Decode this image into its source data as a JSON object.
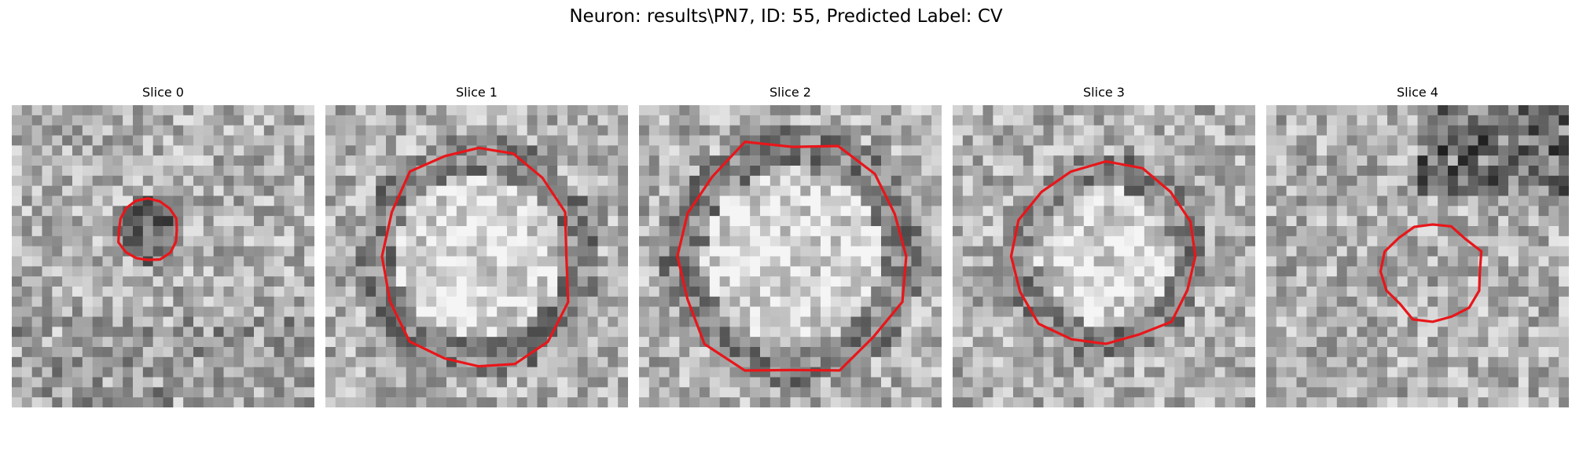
{
  "figure": {
    "title": "Neuron: results\\PN7, ID: 55, Predicted Label: CV",
    "contour_color": "#e8161a",
    "colormap": "gray"
  },
  "panels": [
    {
      "title": "Slice 0",
      "contour_size": 0.23,
      "blob": "dark"
    },
    {
      "title": "Slice 1",
      "contour_size": 0.72,
      "blob": "bright"
    },
    {
      "title": "Slice 2",
      "contour_size": 0.78,
      "blob": "bright"
    },
    {
      "title": "Slice 3",
      "contour_size": 0.6,
      "blob": "bright"
    },
    {
      "title": "Slice 4",
      "contour_size": 0.33,
      "blob": "mid"
    }
  ]
}
